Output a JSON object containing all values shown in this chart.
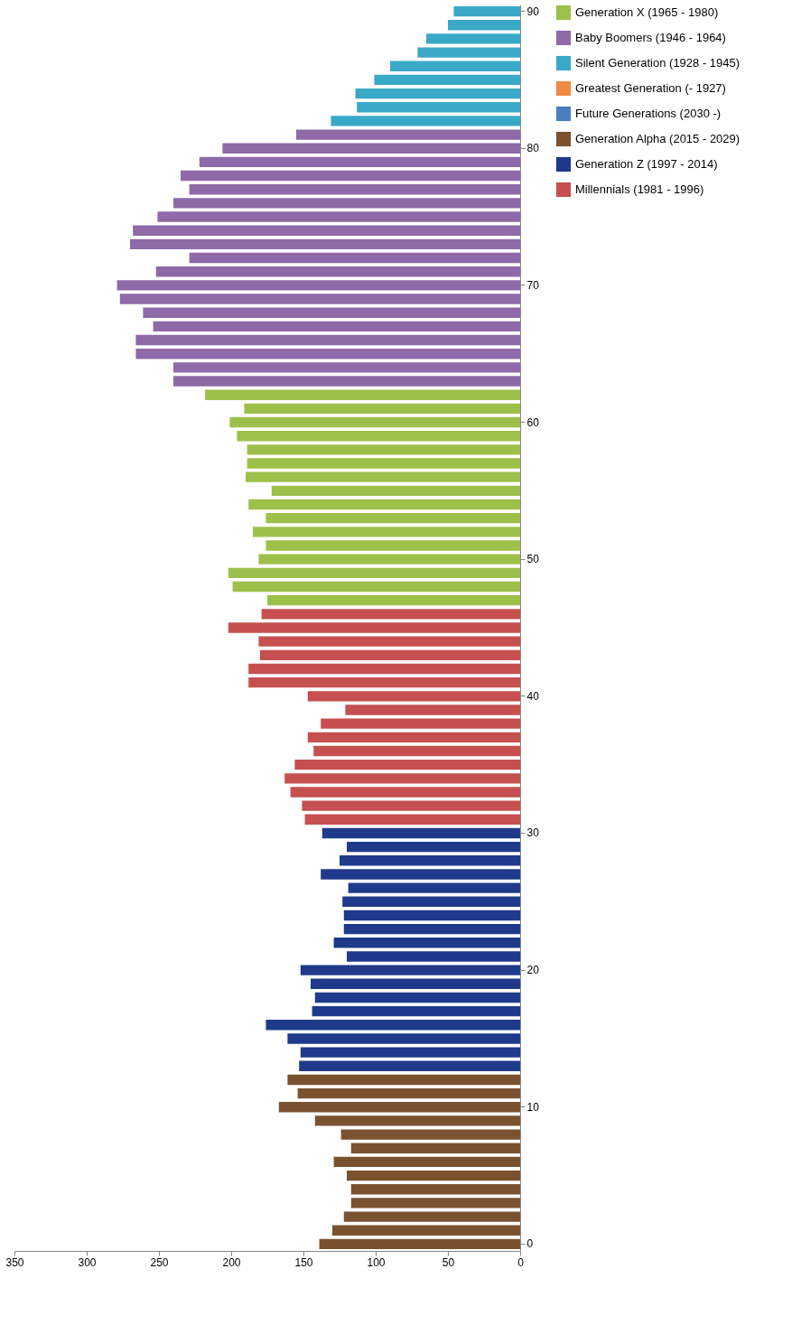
{
  "chart_data": {
    "type": "bar",
    "orientation": "horizontal",
    "categories": [
      "90",
      null,
      null,
      null,
      null,
      null,
      null,
      null,
      null,
      null,
      "80",
      null,
      null,
      null,
      null,
      null,
      null,
      null,
      null,
      null,
      "70",
      null,
      null,
      null,
      null,
      null,
      null,
      null,
      null,
      null,
      "60",
      null,
      null,
      null,
      null,
      null,
      null,
      null,
      null,
      null,
      "50",
      null,
      null,
      null,
      null,
      null,
      null,
      null,
      null,
      null,
      "40",
      null,
      null,
      null,
      null,
      null,
      null,
      null,
      null,
      null,
      "30",
      null,
      null,
      null,
      null,
      null,
      null,
      null,
      null,
      null,
      "20",
      null,
      null,
      null,
      null,
      null,
      null,
      null,
      null,
      null,
      "10",
      null,
      null,
      null,
      null,
      null,
      null,
      null,
      null,
      null,
      "0"
    ],
    "xlim": [
      350,
      0
    ],
    "xticks": [
      0,
      50,
      100,
      150,
      200,
      250,
      300,
      350
    ],
    "grid": false,
    "legend": "right",
    "series": [
      {
        "name": "Generation X (1965 - 1980)",
        "color": "#9dc04a",
        "values": [
          null,
          null,
          null,
          null,
          null,
          null,
          null,
          null,
          null,
          null,
          null,
          null,
          null,
          null,
          null,
          null,
          null,
          null,
          null,
          null,
          null,
          null,
          null,
          null,
          null,
          null,
          null,
          null,
          218,
          191,
          201,
          196,
          189,
          189,
          190,
          172,
          188,
          176,
          185,
          176,
          181,
          202,
          199,
          175,
          null,
          null,
          null,
          null,
          null,
          null,
          null,
          null,
          null,
          null,
          null,
          null,
          null,
          null,
          null,
          null,
          null,
          null,
          null,
          null,
          null,
          null,
          null,
          null,
          null,
          null,
          null,
          null,
          null,
          null,
          null,
          null,
          null,
          null,
          null,
          null,
          null,
          null,
          null,
          null,
          null,
          null,
          null,
          null,
          null,
          null,
          null
        ]
      },
      {
        "name": "Baby Boomers (1946 - 1964)",
        "color": "#8e6aa8",
        "values": [
          null,
          null,
          null,
          null,
          null,
          null,
          null,
          null,
          null,
          155,
          206,
          222,
          235,
          229,
          240,
          251,
          268,
          270,
          229,
          252,
          279,
          277,
          261,
          254,
          266,
          266,
          240,
          240,
          null,
          null,
          null,
          null,
          null,
          null,
          null,
          null,
          null,
          null,
          null,
          null,
          null,
          null,
          null,
          null,
          null,
          null,
          null,
          null,
          null,
          null,
          null,
          null,
          null,
          null,
          null,
          null,
          null,
          null,
          null,
          null,
          null,
          null,
          null,
          null,
          null,
          null,
          null,
          null,
          null,
          null,
          null,
          null,
          null,
          null,
          null,
          null,
          null,
          null,
          null,
          null,
          null,
          null,
          null,
          null,
          null,
          null,
          null,
          null,
          null,
          null,
          null
        ]
      },
      {
        "name": "Silent Generation (1928 - 1945)",
        "color": "#3aa9c8",
        "values": [
          46,
          50,
          65,
          71,
          90,
          101,
          114,
          113,
          131,
          null,
          null,
          null,
          null,
          null,
          null,
          null,
          null,
          null,
          null,
          null,
          null,
          null,
          null,
          null,
          null,
          null,
          null,
          null,
          null,
          null,
          null,
          null,
          null,
          null,
          null,
          null,
          null,
          null,
          null,
          null,
          null,
          null,
          null,
          null,
          null,
          null,
          null,
          null,
          null,
          null,
          null,
          null,
          null,
          null,
          null,
          null,
          null,
          null,
          null,
          null,
          null,
          null,
          null,
          null,
          null,
          null,
          null,
          null,
          null,
          null,
          null,
          null,
          null,
          null,
          null,
          null,
          null,
          null,
          null,
          null,
          null,
          null,
          null,
          null,
          null,
          null,
          null,
          null,
          null,
          null,
          null
        ]
      },
      {
        "name": "Greatest Generation (- 1927)",
        "color": "#ef8a47",
        "values": [
          null,
          null,
          null,
          null,
          null,
          null,
          null,
          null,
          null,
          null,
          null,
          null,
          null,
          null,
          null,
          null,
          null,
          null,
          null,
          null,
          null,
          null,
          null,
          null,
          null,
          null,
          null,
          null,
          null,
          null,
          null,
          null,
          null,
          null,
          null,
          null,
          null,
          null,
          null,
          null,
          null,
          null,
          null,
          null,
          null,
          null,
          null,
          null,
          null,
          null,
          null,
          null,
          null,
          null,
          null,
          null,
          null,
          null,
          null,
          null,
          null,
          null,
          null,
          null,
          null,
          null,
          null,
          null,
          null,
          null,
          null,
          null,
          null,
          null,
          null,
          null,
          null,
          null,
          null,
          null,
          null,
          null,
          null,
          null,
          null,
          null,
          null,
          null,
          null,
          null,
          null
        ]
      },
      {
        "name": "Future Generations (2030 -)",
        "color": "#4b7fc1",
        "values": [
          null,
          null,
          null,
          null,
          null,
          null,
          null,
          null,
          null,
          null,
          null,
          null,
          null,
          null,
          null,
          null,
          null,
          null,
          null,
          null,
          null,
          null,
          null,
          null,
          null,
          null,
          null,
          null,
          null,
          null,
          null,
          null,
          null,
          null,
          null,
          null,
          null,
          null,
          null,
          null,
          null,
          null,
          null,
          null,
          null,
          null,
          null,
          null,
          null,
          null,
          null,
          null,
          null,
          null,
          null,
          null,
          null,
          null,
          null,
          null,
          null,
          null,
          null,
          null,
          null,
          null,
          null,
          null,
          null,
          null,
          null,
          null,
          null,
          null,
          null,
          null,
          null,
          null,
          null,
          null,
          null,
          null,
          null,
          null,
          null,
          null,
          null,
          null,
          null,
          null,
          null
        ]
      },
      {
        "name": "Generation Alpha (2015 - 2029)",
        "color": "#7a5230",
        "values": [
          null,
          null,
          null,
          null,
          null,
          null,
          null,
          null,
          null,
          null,
          null,
          null,
          null,
          null,
          null,
          null,
          null,
          null,
          null,
          null,
          null,
          null,
          null,
          null,
          null,
          null,
          null,
          null,
          null,
          null,
          null,
          null,
          null,
          null,
          null,
          null,
          null,
          null,
          null,
          null,
          null,
          null,
          null,
          null,
          null,
          null,
          null,
          null,
          null,
          null,
          null,
          null,
          null,
          null,
          null,
          null,
          null,
          null,
          null,
          null,
          null,
          null,
          null,
          null,
          null,
          null,
          null,
          null,
          null,
          null,
          null,
          null,
          null,
          null,
          null,
          null,
          null,
          null,
          161,
          154,
          167,
          142,
          124,
          117,
          129,
          120,
          117,
          117,
          122,
          130,
          139
        ]
      },
      {
        "name": "Generation Z (1997 - 2014)",
        "color": "#1f3a8a",
        "values": [
          null,
          null,
          null,
          null,
          null,
          null,
          null,
          null,
          null,
          null,
          null,
          null,
          null,
          null,
          null,
          null,
          null,
          null,
          null,
          null,
          null,
          null,
          null,
          null,
          null,
          null,
          null,
          null,
          null,
          null,
          null,
          null,
          null,
          null,
          null,
          null,
          null,
          null,
          null,
          null,
          null,
          null,
          null,
          null,
          null,
          null,
          null,
          null,
          null,
          null,
          null,
          null,
          null,
          null,
          null,
          null,
          null,
          null,
          null,
          null,
          137,
          120,
          125,
          138,
          119,
          123,
          122,
          122,
          129,
          120,
          152,
          145,
          142,
          144,
          176,
          161,
          152,
          153,
          null,
          null,
          null,
          null,
          null,
          null,
          null,
          null,
          null,
          null,
          null,
          null,
          null
        ]
      },
      {
        "name": "Millennials (1981 - 1996)",
        "color": "#c6504f",
        "values": [
          null,
          null,
          null,
          null,
          null,
          null,
          null,
          null,
          null,
          null,
          null,
          null,
          null,
          null,
          null,
          null,
          null,
          null,
          null,
          null,
          null,
          null,
          null,
          null,
          null,
          null,
          null,
          null,
          null,
          null,
          null,
          null,
          null,
          null,
          null,
          null,
          null,
          null,
          null,
          null,
          null,
          null,
          null,
          null,
          179,
          202,
          181,
          180,
          188,
          188,
          147,
          121,
          138,
          147,
          143,
          156,
          163,
          159,
          151,
          149,
          null,
          null,
          null,
          null,
          null,
          null,
          null,
          null,
          null,
          null,
          null,
          null,
          null,
          null,
          null,
          null,
          null,
          null,
          null,
          null,
          null,
          null,
          null,
          null,
          null,
          null,
          null,
          null,
          null,
          null,
          null
        ]
      }
    ]
  }
}
